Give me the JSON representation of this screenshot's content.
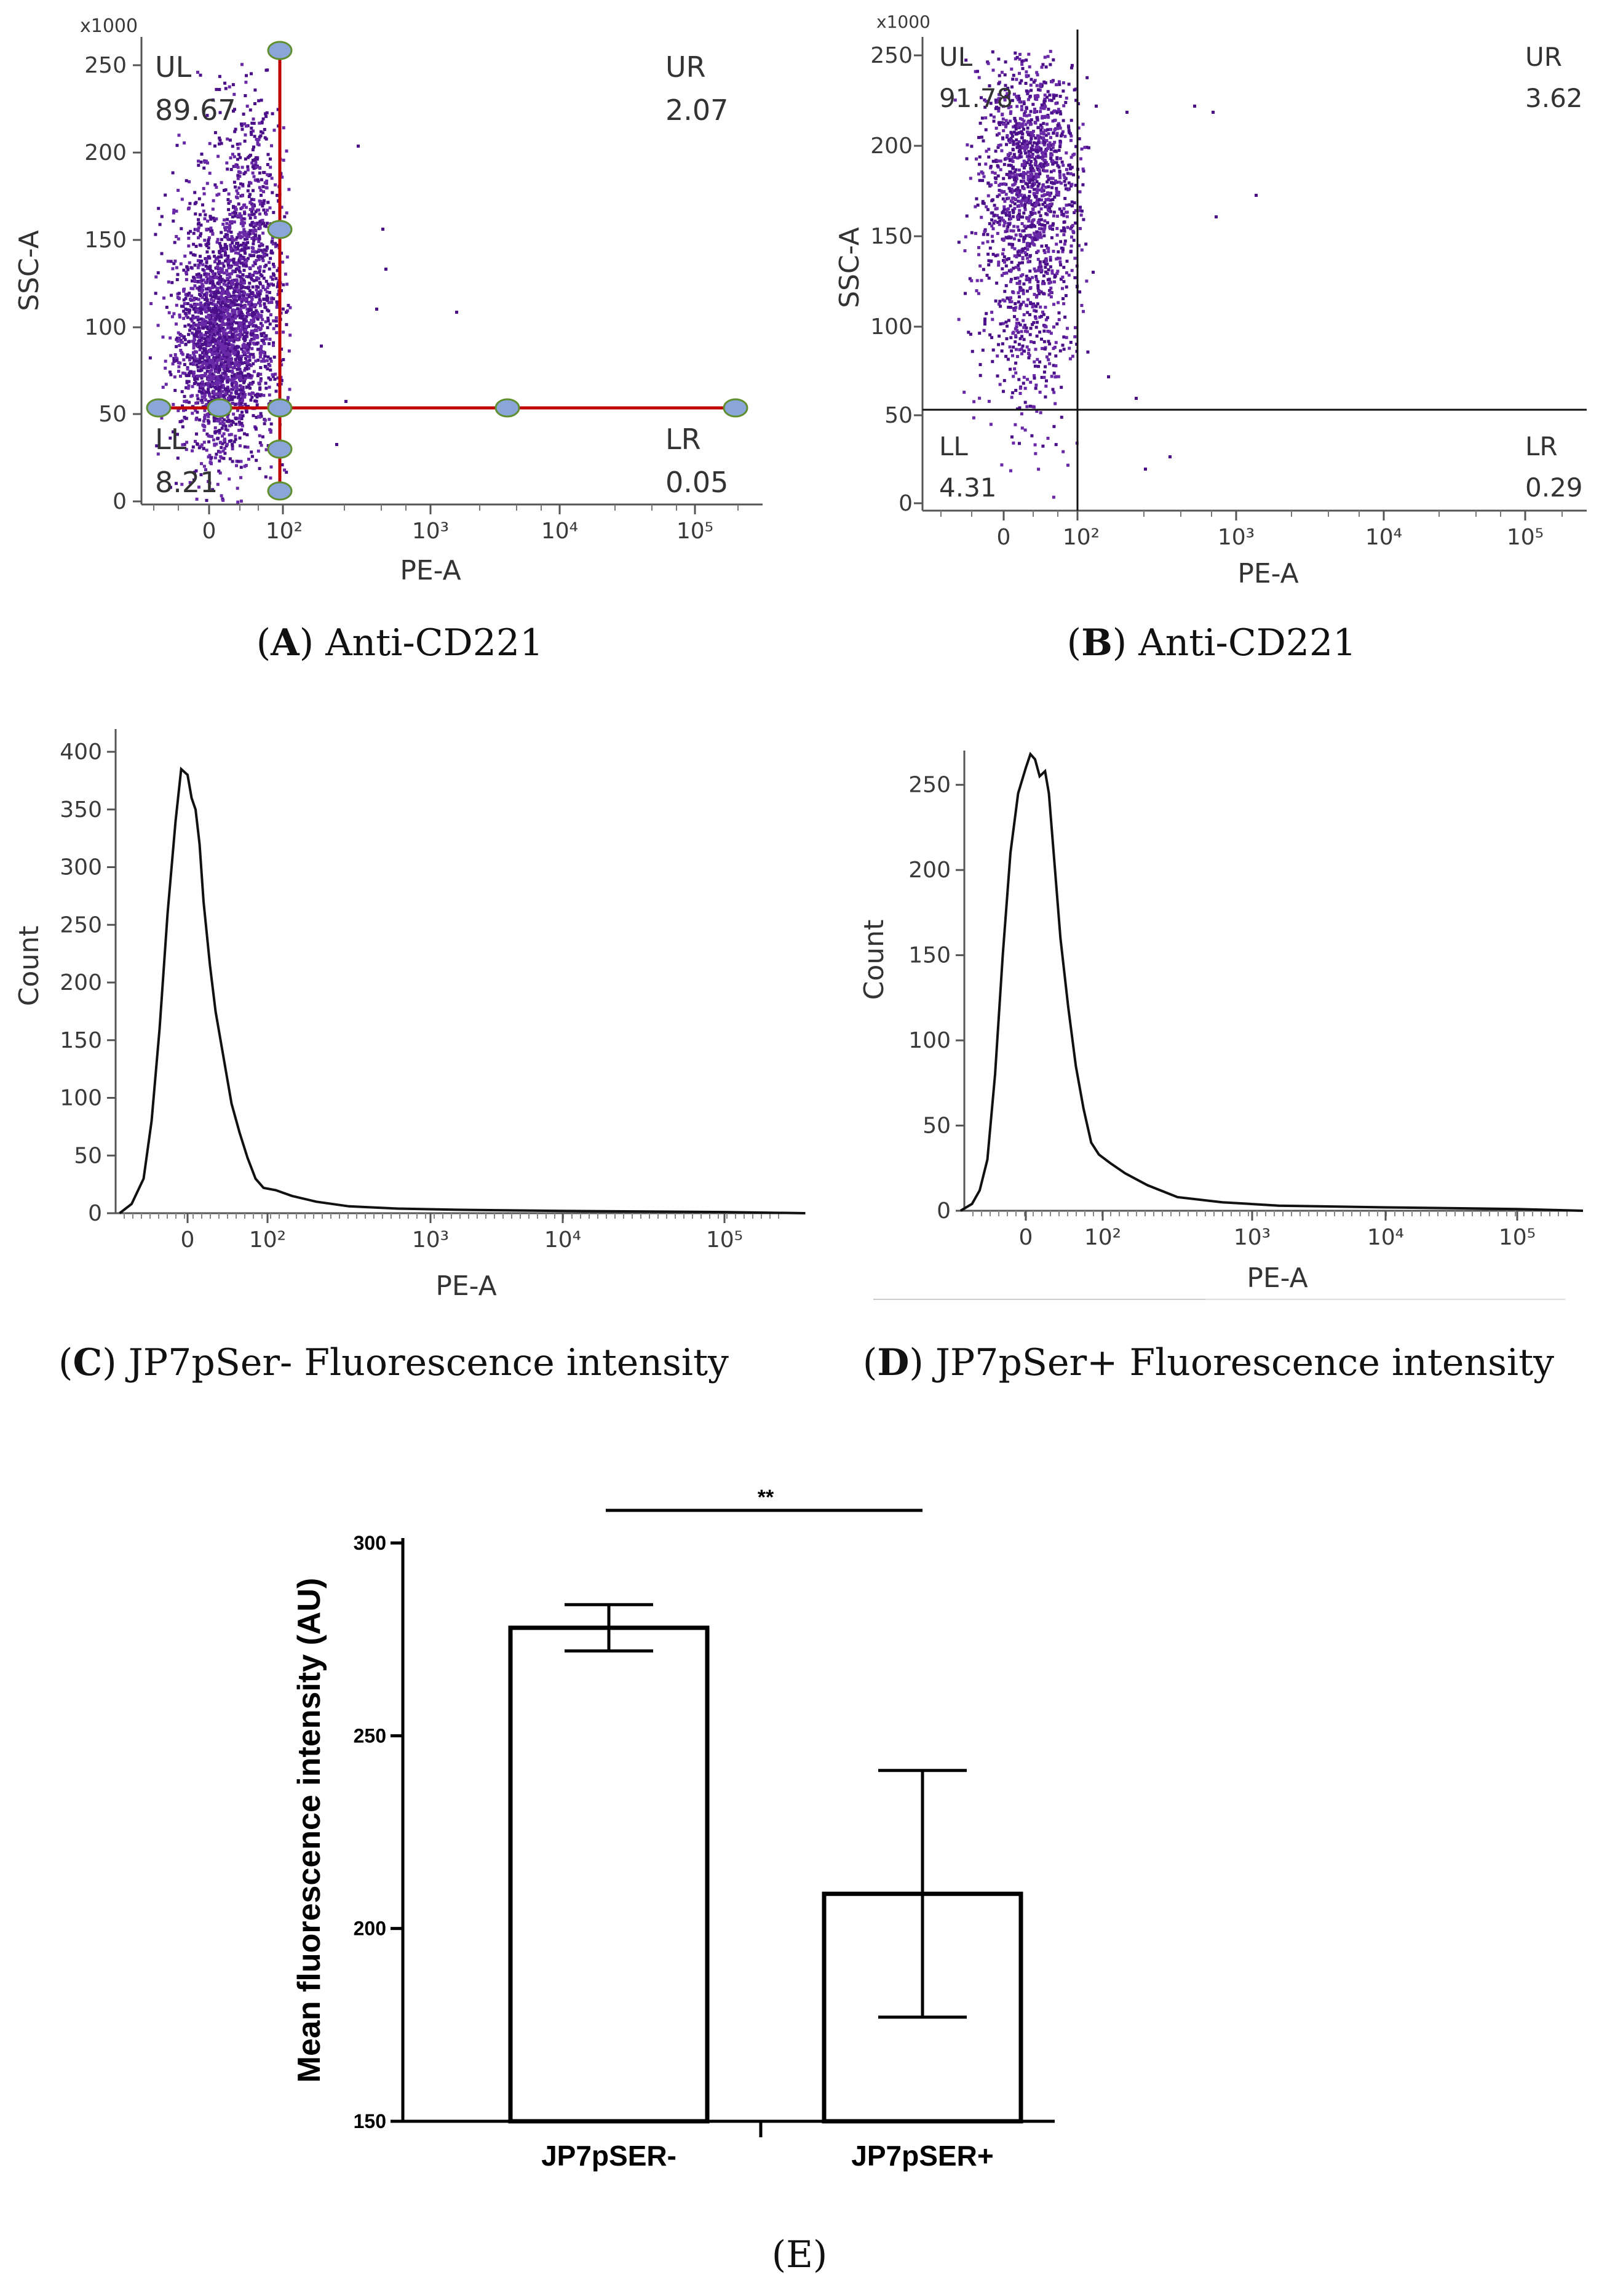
{
  "panels": {
    "A": {
      "type": "scatter",
      "multiplier": "x1000",
      "ylabel": "SSC-A",
      "xlabel": "PE-A",
      "yticks": [
        "0",
        "50",
        "100",
        "150",
        "200",
        "250"
      ],
      "xticks": [
        "0",
        "10²",
        "10³",
        "10⁴",
        "10⁵"
      ],
      "quadrants": {
        "UL": "UL",
        "UL_val": "89.67",
        "UR": "UR",
        "UR_val": "2.07",
        "LL": "LL",
        "LL_val": "8.21",
        "LR": "LR",
        "LR_val": "0.05"
      },
      "gate_color": "#c00000",
      "caption_letter": "A",
      "caption_text": "Anti-CD221"
    },
    "B": {
      "type": "scatter",
      "multiplier": "x1000",
      "ylabel": "SSC-A",
      "xlabel": "PE-A",
      "yticks": [
        "0",
        "50",
        "100",
        "150",
        "200",
        "250"
      ],
      "xticks": [
        "0",
        "10²",
        "10³",
        "10⁴",
        "10⁵"
      ],
      "quadrants": {
        "UL": "UL",
        "UL_val": "91.78",
        "UR": "UR",
        "UR_val": "3.62",
        "LL": "LL",
        "LL_val": "4.31",
        "LR": "LR",
        "LR_val": "0.29"
      },
      "gate_color": "#111111",
      "caption_letter": "B",
      "caption_text": "Anti-CD221"
    },
    "C": {
      "type": "line",
      "ylabel": "Count",
      "xlabel": "PE-A",
      "yticks": [
        "0",
        "50",
        "100",
        "150",
        "200",
        "250",
        "300",
        "350",
        "400"
      ],
      "xticks": [
        "0",
        "10²",
        "10³",
        "10⁴",
        "10⁵"
      ],
      "caption_letter": "C",
      "caption_text": "JP7pSer- Fluorescence intensity"
    },
    "D": {
      "type": "line",
      "ylabel": "Count",
      "xlabel": "PE-A",
      "yticks": [
        "0",
        "50",
        "100",
        "150",
        "200",
        "250"
      ],
      "xticks": [
        "0",
        "10²",
        "10³",
        "10⁴",
        "10⁵"
      ],
      "caption_letter": "D",
      "caption_text": "JP7pSer+ Fluorescence intensity"
    },
    "E": {
      "caption": "(E)"
    }
  },
  "chart_data": [
    {
      "panel": "A",
      "type": "scatter",
      "xlabel": "PE-A",
      "ylabel": "SSC-A",
      "ylim": [
        0,
        260
      ],
      "quadrant_percent": {
        "UL": 89.67,
        "UR": 2.07,
        "LL": 8.21,
        "LR": 0.05
      }
    },
    {
      "panel": "B",
      "type": "scatter",
      "xlabel": "PE-A",
      "ylabel": "SSC-A",
      "ylim": [
        0,
        260
      ],
      "quadrant_percent": {
        "UL": 91.78,
        "UR": 3.62,
        "LL": 4.31,
        "LR": 0.29
      }
    },
    {
      "panel": "C",
      "type": "line",
      "xlabel": "PE-A",
      "ylabel": "Count",
      "ylim": [
        0,
        400
      ],
      "x": [
        -0.85,
        -0.7,
        -0.55,
        -0.45,
        -0.35,
        -0.25,
        -0.15,
        -0.08,
        0,
        0.05,
        0.1,
        0.15,
        0.2,
        0.28,
        0.35,
        0.45,
        0.55,
        0.65,
        0.75,
        0.85,
        0.95,
        1.05,
        1.15,
        1.3,
        1.5,
        1.8,
        2.2,
        3,
        4,
        5.5
      ],
      "y": [
        0,
        8,
        30,
        80,
        160,
        260,
        340,
        385,
        380,
        360,
        350,
        320,
        270,
        215,
        175,
        135,
        95,
        70,
        48,
        30,
        22,
        20,
        15,
        10,
        6,
        4,
        3,
        2,
        1,
        0
      ]
    },
    {
      "panel": "D",
      "type": "line",
      "xlabel": "PE-A",
      "ylabel": "Count",
      "ylim": [
        0,
        260
      ],
      "x": [
        -0.85,
        -0.7,
        -0.6,
        -0.5,
        -0.4,
        -0.3,
        -0.2,
        -0.1,
        0,
        0.06,
        0.12,
        0.18,
        0.25,
        0.3,
        0.38,
        0.45,
        0.55,
        0.65,
        0.75,
        0.85,
        0.95,
        1.05,
        1.15,
        1.3,
        1.5,
        1.8,
        2.2,
        3,
        4,
        5.5
      ],
      "y": [
        0,
        4,
        12,
        30,
        80,
        150,
        210,
        245,
        260,
        268,
        265,
        255,
        258,
        245,
        200,
        160,
        120,
        85,
        60,
        40,
        33,
        28,
        22,
        15,
        8,
        5,
        3,
        2,
        1,
        0
      ]
    },
    {
      "panel": "E",
      "type": "bar",
      "categories": [
        "JP7pSER-",
        "JP7pSER+"
      ],
      "values": [
        278,
        209
      ],
      "errors": [
        6,
        32
      ],
      "ylabel": "Mean fluorescence intensity (AU)",
      "ylim": [
        150,
        300
      ],
      "yticks": [
        "150",
        "200",
        "250",
        "300"
      ],
      "significance": "**"
    }
  ]
}
